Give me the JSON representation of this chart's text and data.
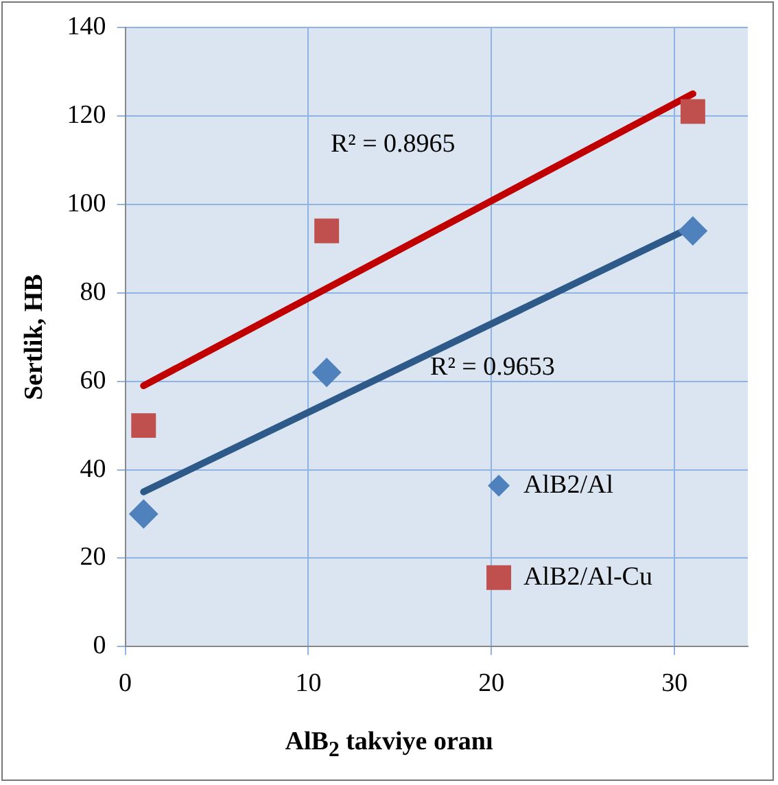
{
  "chart_data": {
    "type": "scatter",
    "xlabel": "AlB$_{2}$ takviye oranı",
    "ylabel": "Sertlik, HB",
    "x": [
      1,
      11,
      31
    ],
    "series": [
      {
        "name": "AlB2/Al",
        "color": "#4f81bd",
        "values": [
          30,
          62,
          94
        ],
        "marker": "diamond"
      },
      {
        "name": "AlB2/Al-Cu",
        "color": "#c0504d",
        "values": [
          50,
          94,
          121
        ],
        "marker": "square"
      },
      {
        "type": "line",
        "color": "#2e5a8a",
        "values": [
          35,
          55,
          95
        ],
        "marker": "none"
      },
      {
        "type": "line",
        "color": "#c00000",
        "values": [
          59,
          81,
          125
        ],
        "marker": "none"
      }
    ],
    "xlim": [
      0,
      34
    ],
    "xticks": [
      0,
      10,
      20,
      30
    ],
    "ylim": [
      0,
      140
    ],
    "yticks": [
      0,
      20,
      40,
      60,
      80,
      100,
      120,
      140
    ],
    "grid": true,
    "legend": "bottom right",
    "annotations": [
      "R² = 0.8965",
      "R² = 0.9653"
    ]
  }
}
